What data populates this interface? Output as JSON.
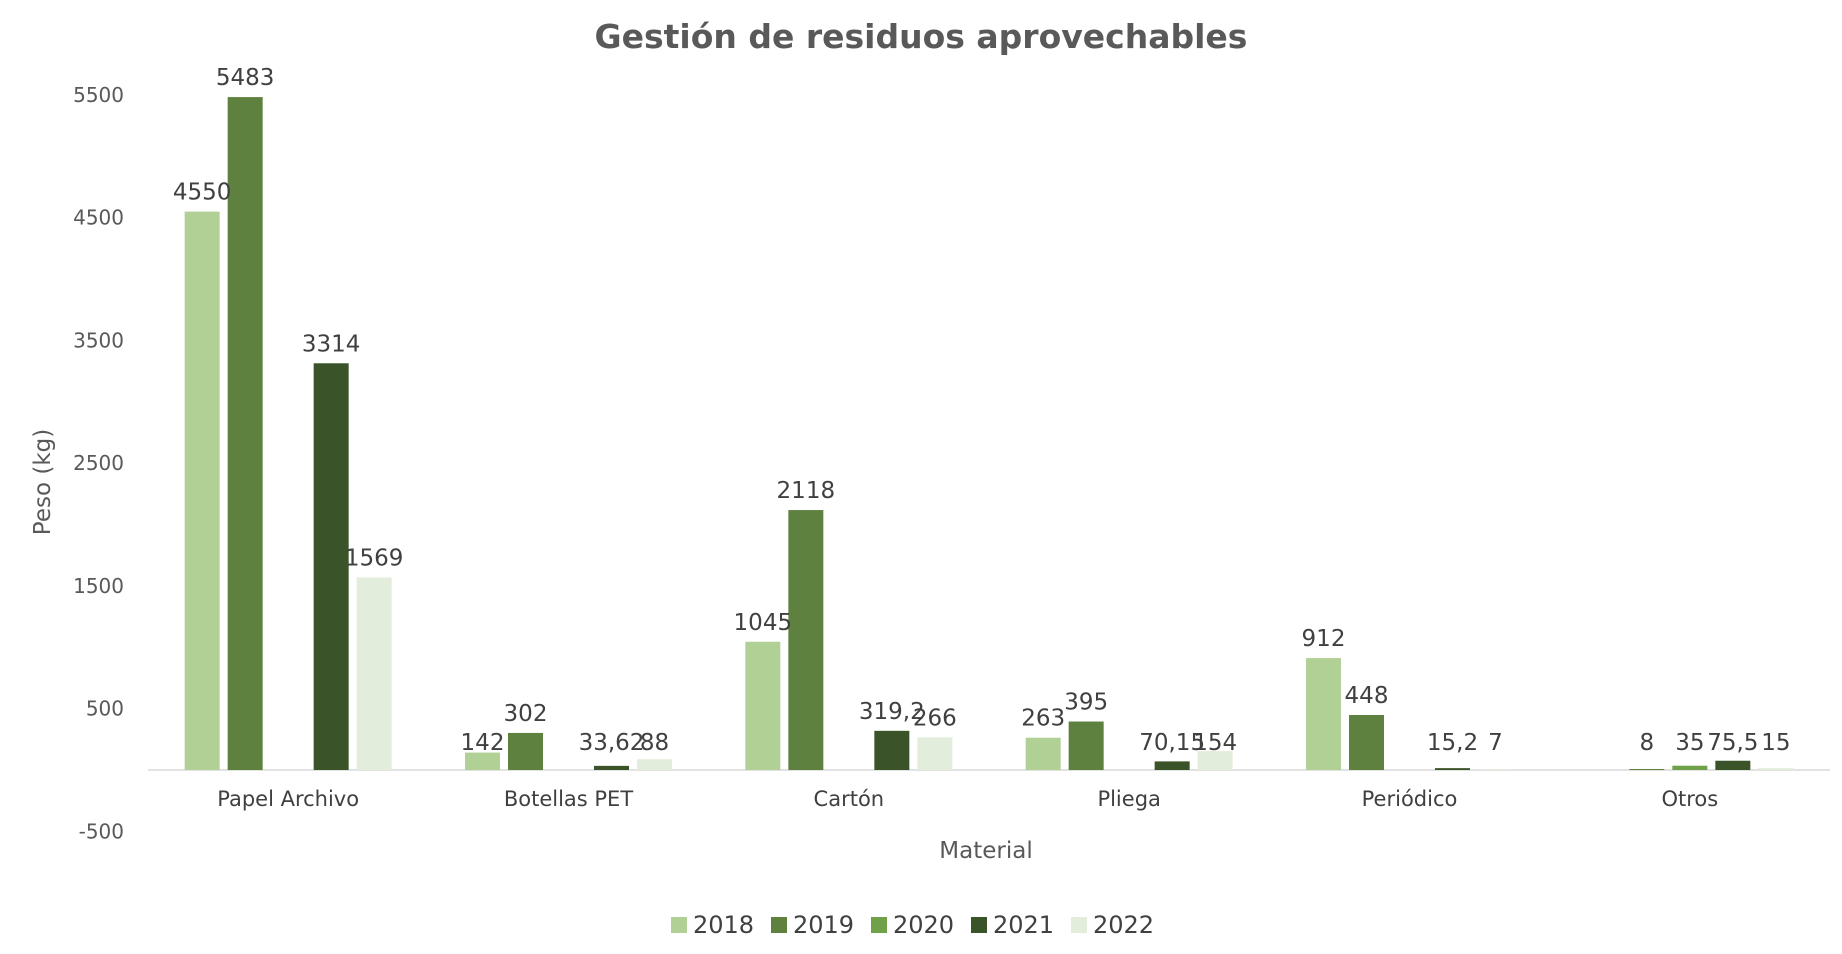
{
  "chart_data": {
    "type": "bar",
    "title": "Gestión de residuos aprovechables",
    "xlabel": "Material",
    "ylabel": "Peso (kg)",
    "ylim": [
      -500,
      5500
    ],
    "yticks": [
      "-500",
      "500",
      "1500",
      "2500",
      "3500",
      "4500",
      "5500"
    ],
    "ytick_values": [
      -500,
      500,
      1500,
      2500,
      3500,
      4500,
      5500
    ],
    "categories": [
      "Papel Archivo",
      "Botellas PET",
      "Cartón",
      "Pliega",
      "Periódico",
      "Otros"
    ],
    "series": [
      {
        "name": "2018",
        "color": "#b1d095",
        "values": [
          4550,
          142,
          1045,
          263,
          912,
          null
        ],
        "labels": [
          "4550",
          "142",
          "1045",
          "263",
          "912",
          ""
        ]
      },
      {
        "name": "2019",
        "color": "#5e8140",
        "values": [
          5483,
          302,
          2118,
          395,
          448,
          8
        ],
        "labels": [
          "5483",
          "302",
          "2118",
          "395",
          "448",
          "8"
        ]
      },
      {
        "name": "2020",
        "color": "#6fa04a",
        "values": [
          null,
          null,
          null,
          null,
          null,
          35
        ],
        "labels": [
          "",
          "",
          "",
          "",
          "",
          "35"
        ]
      },
      {
        "name": "2021",
        "color": "#3b5328",
        "values": [
          3314,
          33.62,
          319.2,
          70.15,
          15.2,
          75.5
        ],
        "labels": [
          "3314",
          "33,62",
          "319,2",
          "70,15",
          "15,2",
          "75,5"
        ]
      },
      {
        "name": "2022",
        "color": "#e3eddb",
        "values": [
          1569,
          88,
          266,
          154,
          7,
          15
        ],
        "labels": [
          "1569",
          "88",
          "266",
          "154",
          "7",
          "15"
        ]
      }
    ],
    "grid": false,
    "legend_position": "bottom"
  }
}
